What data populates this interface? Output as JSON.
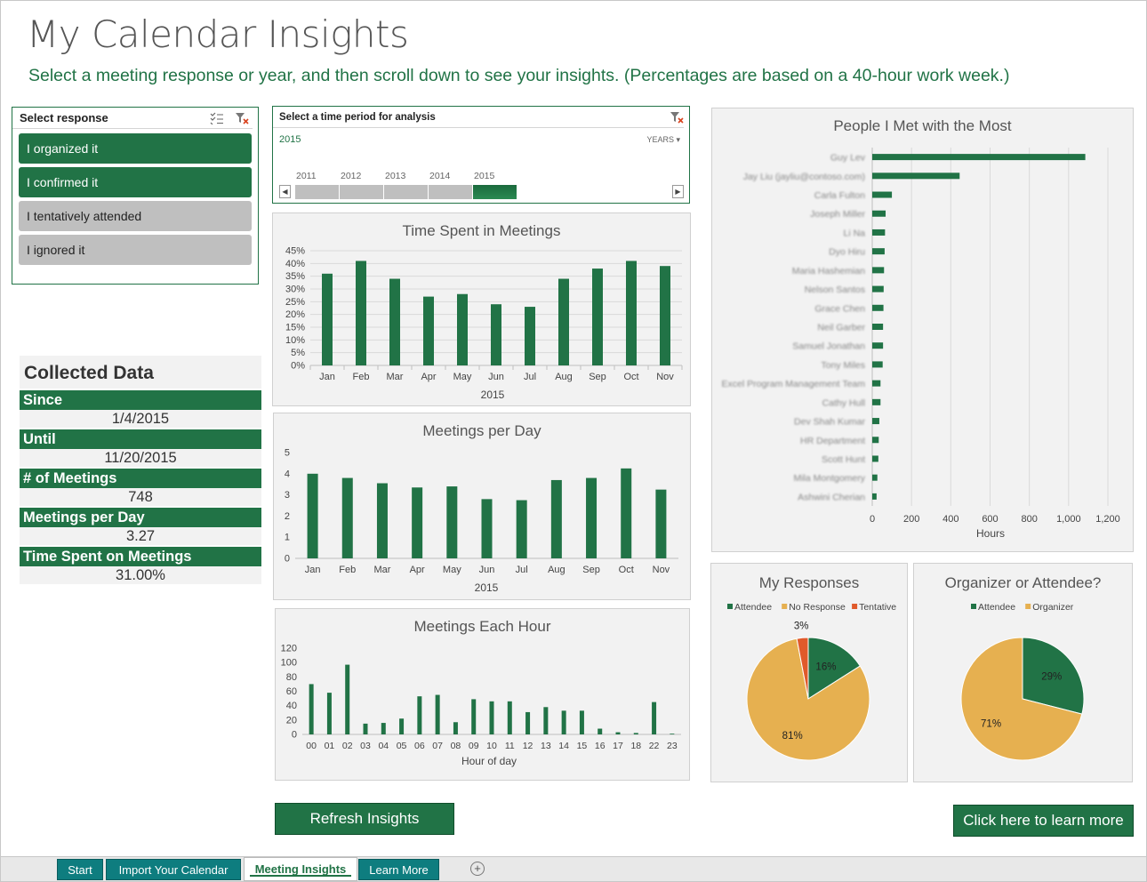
{
  "header": {
    "title": "My Calendar Insights",
    "subtitle": "Select a meeting response or year, and then scroll down to see your insights. (Percentages are based on a 40-hour work week.)"
  },
  "slicer": {
    "title": "Select response",
    "items": [
      {
        "label": "I organized it",
        "selected": true
      },
      {
        "label": "I confirmed it",
        "selected": true
      },
      {
        "label": "I tentatively attended",
        "selected": false
      },
      {
        "label": "I ignored it",
        "selected": false
      }
    ]
  },
  "timeline": {
    "title": "Select a time period for analysis",
    "range_label": "2015",
    "level": "YEARS",
    "years": [
      "2011",
      "2012",
      "2013",
      "2014",
      "2015"
    ],
    "selected_year": "2015"
  },
  "collected": {
    "title": "Collected Data",
    "rows": [
      {
        "label": "Since",
        "value": "1/4/2015"
      },
      {
        "label": "Until",
        "value": "11/20/2015"
      },
      {
        "label": "# of Meetings",
        "value": "748"
      },
      {
        "label": "Meetings per Day",
        "value": "3.27"
      },
      {
        "label": "Time Spent on Meetings",
        "value": "31.00%"
      }
    ]
  },
  "buttons": {
    "refresh": "Refresh Insights",
    "learn_more": "Click here to learn more"
  },
  "tabs": [
    {
      "label": "Start",
      "active": false
    },
    {
      "label": "Import Your Calendar",
      "active": false
    },
    {
      "label": "Meeting Insights",
      "active": true
    },
    {
      "label": "Learn More",
      "active": false
    }
  ],
  "colors": {
    "green": "#217346",
    "orange": "#e6b050",
    "red": "#e05a2b",
    "gray": "#bfbfbf"
  },
  "chart_data": [
    {
      "id": "time-spent",
      "type": "bar",
      "title": "Time Spent in Meetings",
      "categories": [
        "Jan",
        "Feb",
        "Mar",
        "Apr",
        "May",
        "Jun",
        "Jul",
        "Aug",
        "Sep",
        "Oct",
        "Nov"
      ],
      "values": [
        36,
        41,
        34,
        27,
        28,
        24,
        23,
        34,
        38,
        41,
        39
      ],
      "xlabel": "2015",
      "ylim": [
        0,
        45
      ],
      "yticks": [
        "0%",
        "5%",
        "10%",
        "15%",
        "20%",
        "25%",
        "30%",
        "35%",
        "40%",
        "45%"
      ],
      "grid": true
    },
    {
      "id": "meetings-per-day",
      "type": "bar",
      "title": "Meetings per Day",
      "categories": [
        "Jan",
        "Feb",
        "Mar",
        "Apr",
        "May",
        "Jun",
        "Jul",
        "Aug",
        "Sep",
        "Oct",
        "Nov"
      ],
      "values": [
        4.0,
        3.8,
        3.55,
        3.35,
        3.4,
        2.8,
        2.75,
        3.7,
        3.8,
        4.25,
        3.25
      ],
      "xlabel": "2015",
      "ylim": [
        0,
        5
      ],
      "yticks": [
        "0",
        "1",
        "2",
        "3",
        "4",
        "5"
      ],
      "grid": false
    },
    {
      "id": "meetings-each-hour",
      "type": "bar",
      "title": "Meetings Each Hour",
      "categories": [
        "00",
        "01",
        "02",
        "03",
        "04",
        "05",
        "06",
        "07",
        "08",
        "09",
        "10",
        "11",
        "12",
        "13",
        "14",
        "15",
        "16",
        "17",
        "18",
        "22",
        "23"
      ],
      "values": [
        70,
        58,
        97,
        15,
        16,
        22,
        53,
        55,
        17,
        49,
        46,
        46,
        31,
        38,
        33,
        33,
        8,
        3,
        2,
        45,
        1
      ],
      "xlabel": "Hour of day",
      "ylim": [
        0,
        120
      ],
      "yticks": [
        "0",
        "20",
        "40",
        "60",
        "80",
        "100",
        "120"
      ],
      "grid": false
    },
    {
      "id": "people-met",
      "type": "bar",
      "orientation": "horizontal",
      "title": "People I Met with the Most",
      "categories": [
        "Guy Lev",
        "Jay Liu (jayliu@contoso.com)",
        "Carla Fulton",
        "Joseph Miller",
        "Li Na",
        "Dyo Hiru",
        "Maria Hashemian",
        "Nelson Santos",
        "Grace Chen",
        "Neil Garber",
        "Samuel Jonathan",
        "Tony Miles",
        "Excel Program Management Team",
        "Cathy Hull",
        "Dev Shah Kumar",
        "HR Department",
        "Scott Hunt",
        "Mila Montgomery",
        "Ashwini Cherian"
      ],
      "values": [
        1085,
        445,
        100,
        68,
        65,
        63,
        60,
        58,
        57,
        55,
        55,
        53,
        42,
        42,
        36,
        33,
        31,
        26,
        22
      ],
      "xlabel": "Hours",
      "xlim": [
        0,
        1200
      ],
      "xticks": [
        "0",
        "200",
        "400",
        "600",
        "800",
        "1,000",
        "1,200"
      ],
      "grid": true
    },
    {
      "id": "my-responses",
      "type": "pie",
      "title": "My Responses",
      "legend": [
        "Attendee",
        "No Response",
        "Tentative"
      ],
      "values": [
        16,
        81,
        3
      ],
      "labels": [
        "16%",
        "81%",
        "3%"
      ]
    },
    {
      "id": "organizer-attendee",
      "type": "pie",
      "title": "Organizer or Attendee?",
      "legend": [
        "Attendee",
        "Organizer"
      ],
      "values": [
        29,
        71
      ],
      "labels": [
        "29%",
        "71%"
      ]
    }
  ]
}
